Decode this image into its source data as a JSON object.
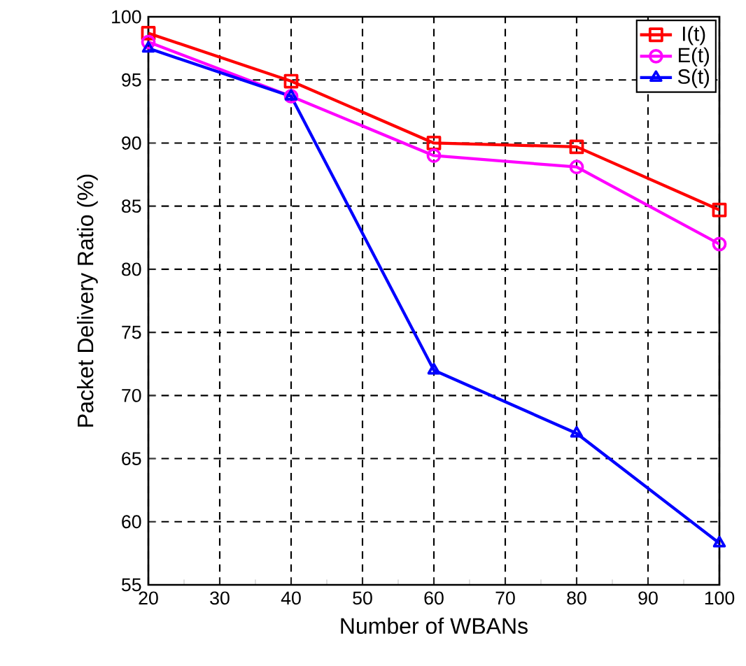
{
  "chart_data": {
    "type": "line",
    "xlabel": "Number of WBANs",
    "ylabel": "Packet Delivery Ratio (%)",
    "x": [
      20,
      40,
      60,
      80,
      100
    ],
    "series": [
      {
        "name": "I(t)",
        "color": "#ff0000",
        "marker": "square",
        "values": [
          98.7,
          94.9,
          90.0,
          89.7,
          84.7
        ]
      },
      {
        "name": "E(t)",
        "color": "#ff00ff",
        "marker": "circle",
        "values": [
          98.0,
          93.7,
          89.0,
          88.1,
          82.0
        ]
      },
      {
        "name": "S(t)",
        "color": "#0000ff",
        "marker": "triangle",
        "values": [
          97.5,
          93.7,
          72.0,
          67.0,
          58.3
        ]
      }
    ],
    "xlim": [
      20,
      100
    ],
    "ylim": [
      55,
      100
    ],
    "xticks": [
      20,
      30,
      40,
      50,
      60,
      70,
      80,
      90,
      100
    ],
    "yticks": [
      55,
      60,
      65,
      70,
      75,
      80,
      85,
      90,
      95,
      100
    ],
    "grid": true,
    "legend": "top right",
    "line_style": "solid"
  }
}
